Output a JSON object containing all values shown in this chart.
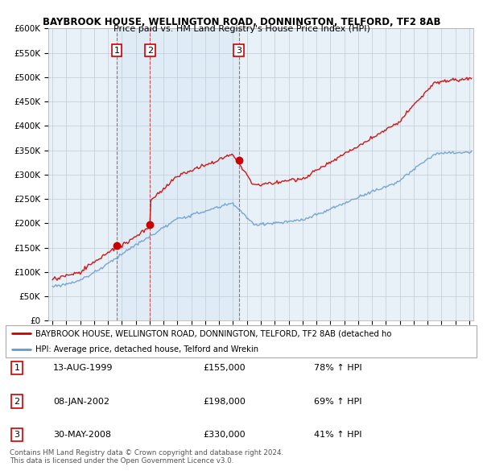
{
  "title": "BAYBROOK HOUSE, WELLINGTON ROAD, DONNINGTON, TELFORD, TF2 8AB",
  "subtitle": "Price paid vs. HM Land Registry's House Price Index (HPI)",
  "legend_line1": "BAYBROOK HOUSE, WELLINGTON ROAD, DONNINGTON, TELFORD, TF2 8AB (detached ho",
  "legend_line2": "HPI: Average price, detached house, Telford and Wrekin",
  "transactions": [
    {
      "num": 1,
      "date": "13-AUG-1999",
      "price": 155000,
      "hpi_pct": "78% ↑ HPI",
      "x": 1999.62
    },
    {
      "num": 2,
      "date": "08-JAN-2002",
      "price": 198000,
      "hpi_pct": "69% ↑ HPI",
      "x": 2002.03
    },
    {
      "num": 3,
      "date": "30-MAY-2008",
      "price": 330000,
      "hpi_pct": "41% ↑ HPI",
      "x": 2008.41
    }
  ],
  "copyright": "Contains HM Land Registry data © Crown copyright and database right 2024.\nThis data is licensed under the Open Government Licence v3.0.",
  "red_color": "#cc0000",
  "blue_color": "#6699cc",
  "chart_bg": "#e8f0f8",
  "background_color": "#ffffff",
  "grid_color": "#c0ccd8",
  "ylim": [
    0,
    600000
  ],
  "xlim_start": 1994.7,
  "xlim_end": 2025.3
}
